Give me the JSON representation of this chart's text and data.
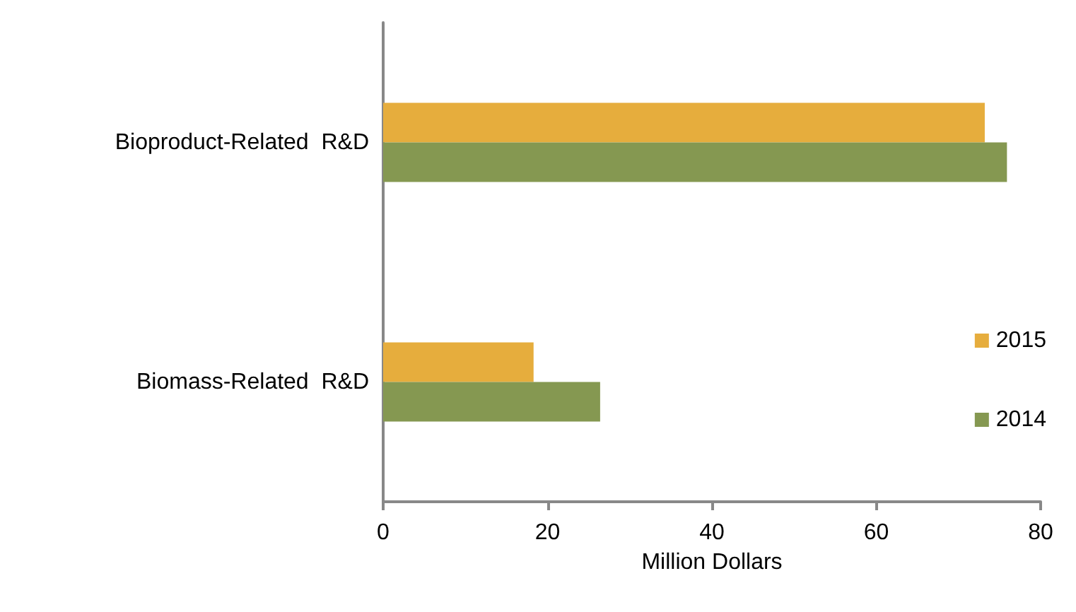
{
  "chart_data": {
    "type": "bar",
    "orientation": "horizontal",
    "xlabel": "Million Dollars",
    "categories": [
      "Bioproduct-Related  R&D",
      "Biomass-Related  R&D"
    ],
    "series": [
      {
        "name": "2015",
        "color": "#e6ad3d",
        "values": [
          73.2,
          18.3
        ]
      },
      {
        "name": "2014",
        "color": "#859851",
        "values": [
          75.9,
          26.4
        ]
      }
    ],
    "xlim": [
      0,
      80
    ],
    "xticks": [
      0,
      20,
      40,
      60,
      80
    ],
    "grid": false,
    "legend": "right"
  }
}
